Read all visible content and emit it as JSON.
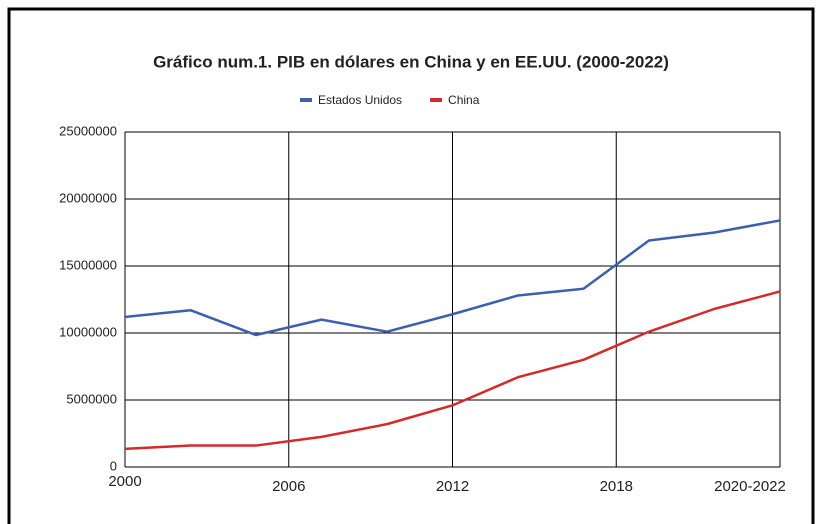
{
  "chart_data": {
    "type": "line",
    "title": "Gráfico num.1. PIB en dólares en China y en EE.UU.  (2000-2022)",
    "x": [
      2000,
      2002.4,
      2004.8,
      2007.2,
      2009.6,
      2012,
      2014.4,
      2016.8,
      2019.2,
      2021.6,
      2024
    ],
    "series": [
      {
        "name": "Estados Unidos",
        "color": "#3c5fb0",
        "values": [
          11200000,
          11700000,
          9850000,
          11000000,
          10100000,
          11400000,
          12800000,
          13300000,
          16900000,
          17500000,
          18400000
        ]
      },
      {
        "name": "China",
        "color": "#d42a2a",
        "values": [
          1350000,
          1600000,
          1600000,
          2250000,
          3200000,
          4600000,
          6700000,
          8000000,
          10100000,
          11800000,
          13100000
        ]
      }
    ],
    "xlim": [
      2000,
      2024
    ],
    "xticks": [
      2000,
      2006,
      2012,
      2018,
      {
        "value": 2024,
        "label": "2020-2022"
      }
    ],
    "ylim": [
      0,
      25000000
    ],
    "yticks": [
      0,
      5000000,
      10000000,
      15000000,
      20000000,
      25000000
    ],
    "grid": true,
    "legend": "top"
  }
}
